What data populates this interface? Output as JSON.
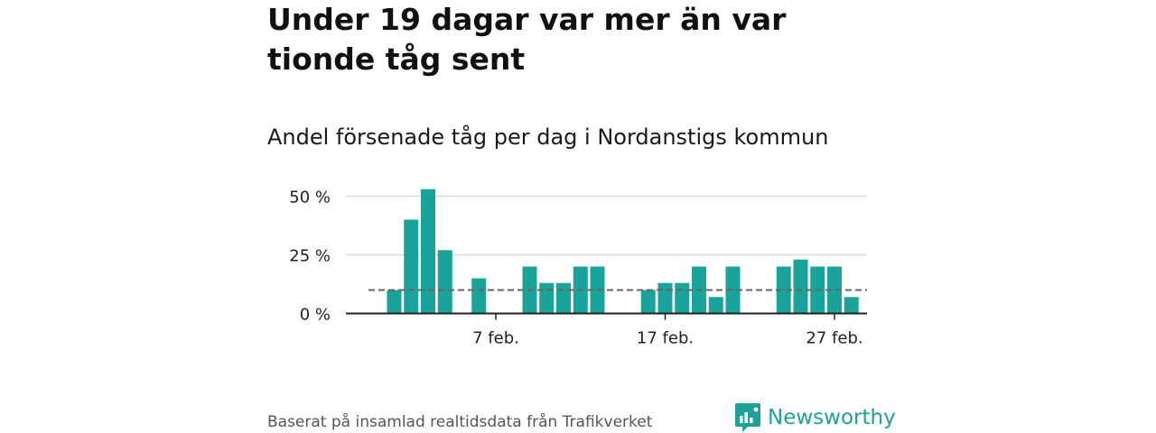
{
  "headline": "Under 19 dagar var mer än var tionde tåg sent",
  "subtitle": "Andel försenade tåg per dag i Nordanstigs kommun",
  "footer": {
    "source": "Baserat på insamlad realtidsdata från Trafikverket",
    "brand": "Newsworthy"
  },
  "colors": {
    "bar": "#19a39a",
    "reference_line": "#666666",
    "grid": "#d9d9d9",
    "axis": "#222222",
    "brand": "#1ea196"
  },
  "chart_data": {
    "type": "bar",
    "title": "Andel försenade tåg per dag i Nordanstigs kommun",
    "xlabel": "",
    "ylabel": "",
    "unit": "%",
    "x": [
      "2024-02-01",
      "2024-02-02",
      "2024-02-03",
      "2024-02-04",
      "2024-02-05",
      "2024-02-06",
      "2024-02-07",
      "2024-02-08",
      "2024-02-09",
      "2024-02-10",
      "2024-02-11",
      "2024-02-12",
      "2024-02-13",
      "2024-02-14",
      "2024-02-15",
      "2024-02-16",
      "2024-02-17",
      "2024-02-18",
      "2024-02-19",
      "2024-02-20",
      "2024-02-21",
      "2024-02-22",
      "2024-02-23",
      "2024-02-24",
      "2024-02-25",
      "2024-02-26",
      "2024-02-27",
      "2024-02-28"
    ],
    "values": [
      10,
      40,
      53,
      27,
      null,
      15,
      null,
      null,
      20,
      13,
      13,
      20,
      20,
      null,
      null,
      10,
      13,
      13,
      20,
      7,
      20,
      null,
      null,
      20,
      23,
      20,
      20,
      7
    ],
    "reference_line": 10,
    "ylim": [
      0,
      60
    ],
    "yticks": [
      0,
      25,
      50
    ],
    "ytick_labels": [
      "0 %",
      "25 %",
      "50 %"
    ],
    "xticks": [
      "2024-02-07",
      "2024-02-17",
      "2024-02-27"
    ],
    "xtick_labels": [
      "7 feb.",
      "17 feb.",
      "27 feb."
    ],
    "grid": true,
    "legend": "none"
  }
}
